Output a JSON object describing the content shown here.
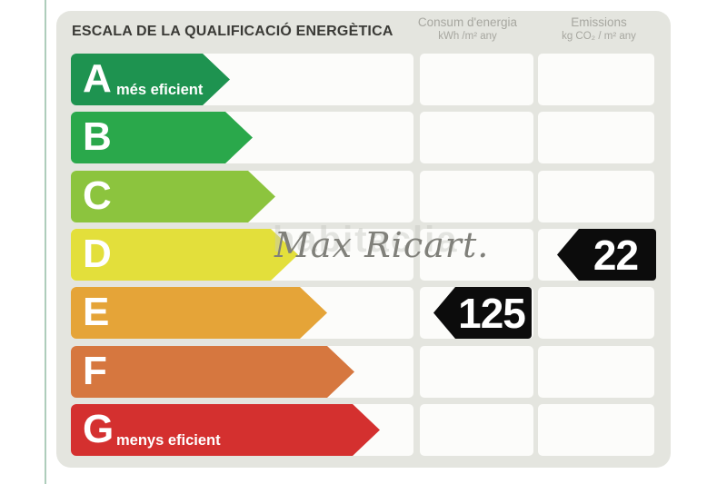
{
  "title": "ESCALA DE LA QUALIFICACIÓ ENERGÈTICA",
  "columns": {
    "consum": {
      "label": "Consum d'energia",
      "unit": "kWh /m²  any"
    },
    "emissions": {
      "label": "Emissions",
      "unit": "kg CO₂  / m²  any"
    }
  },
  "rows": [
    {
      "letter": "A",
      "label": "més eficient",
      "color": "#1e9350",
      "arrow_width": 175
    },
    {
      "letter": "B",
      "label": "",
      "color": "#2aa84b",
      "arrow_width": 200
    },
    {
      "letter": "C",
      "label": "",
      "color": "#8cc43e",
      "arrow_width": 225
    },
    {
      "letter": "D",
      "label": "",
      "color": "#e3df3b",
      "arrow_width": 250
    },
    {
      "letter": "E",
      "label": "",
      "color": "#e5a438",
      "arrow_width": 282
    },
    {
      "letter": "F",
      "label": "",
      "color": "#d6773f",
      "arrow_width": 312
    },
    {
      "letter": "G",
      "label": "menys eficient",
      "color": "#d4302f",
      "arrow_width": 340
    }
  ],
  "values": {
    "consum": {
      "value": "125",
      "rating_row": "E"
    },
    "emissions": {
      "value": "22",
      "rating_row": "D"
    }
  },
  "marker_color": "#0c0c0c",
  "watermark": "Max Ricart.",
  "watermark_faint": "habitaclia",
  "chart_data": {
    "type": "bar",
    "title": "ESCALA DE LA QUALIFICACIÓ ENERGÈTICA",
    "categories": [
      "A",
      "B",
      "C",
      "D",
      "E",
      "F",
      "G"
    ],
    "values": [
      175,
      200,
      225,
      250,
      282,
      312,
      340
    ],
    "values_note": "ordinal rating-scale bar lengths in px (A shortest = most efficient, G longest = least efficient)",
    "bar_colors": [
      "#1e9350",
      "#2aa84b",
      "#8cc43e",
      "#e3df3b",
      "#e5a438",
      "#d6773f",
      "#d4302f"
    ],
    "orientation": "horizontal",
    "annotations": [
      {
        "column": "Consum d'energia",
        "unit": "kWh/m² any",
        "rating": "E",
        "value": 125
      },
      {
        "column": "Emissions",
        "unit": "kg CO₂/m² any",
        "rating": "D",
        "value": 22
      }
    ],
    "extremes": {
      "A": "més eficient",
      "G": "menys eficient"
    },
    "legend_position": "none",
    "grid": false
  }
}
